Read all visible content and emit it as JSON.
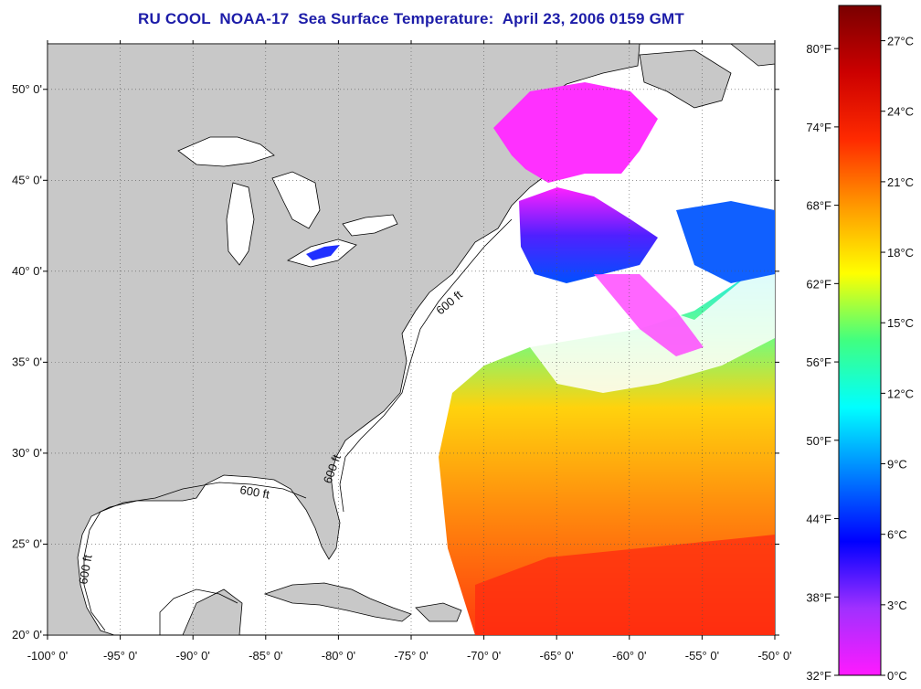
{
  "title": "RU COOL  NOAA-17  Sea Surface Temperature:  April 23, 2006 0159 GMT",
  "map": {
    "lon_range": [
      -100,
      -50
    ],
    "lat_range": [
      20,
      52.5
    ],
    "lon_ticks": [
      "-100° 0'",
      "-95° 0'",
      "-90° 0'",
      "-85° 0'",
      "-80° 0'",
      "-75° 0'",
      "-70° 0'",
      "-65° 0'",
      "-60° 0'",
      "-55° 0'",
      "-50° 0'"
    ],
    "lat_ticks": [
      "50° 0'",
      "45° 0'",
      "40° 0'",
      "35° 0'",
      "30° 0'",
      "25° 0'",
      "20° 0'"
    ],
    "land_color": "#c8c8c8",
    "ocean_color": "#ffffff",
    "isobath_label": "600 ft"
  },
  "colorbar": {
    "fahrenheit_labels": [
      "80°F",
      "74°F",
      "68°F",
      "62°F",
      "56°F",
      "50°F",
      "44°F",
      "38°F",
      "32°F"
    ],
    "celsius_labels": [
      "27°C",
      "24°C",
      "21°C",
      "18°C",
      "15°C",
      "12°C",
      "9°C",
      "6°C",
      "3°C",
      "0°C"
    ],
    "range_c": [
      0,
      28.5
    ],
    "stops": [
      "#ff1aff",
      "#a030ff",
      "#0000ff",
      "#0080ff",
      "#00ffff",
      "#40ff80",
      "#ffff00",
      "#ff9900",
      "#ff2a00",
      "#cc0000",
      "#7a0000"
    ]
  }
}
